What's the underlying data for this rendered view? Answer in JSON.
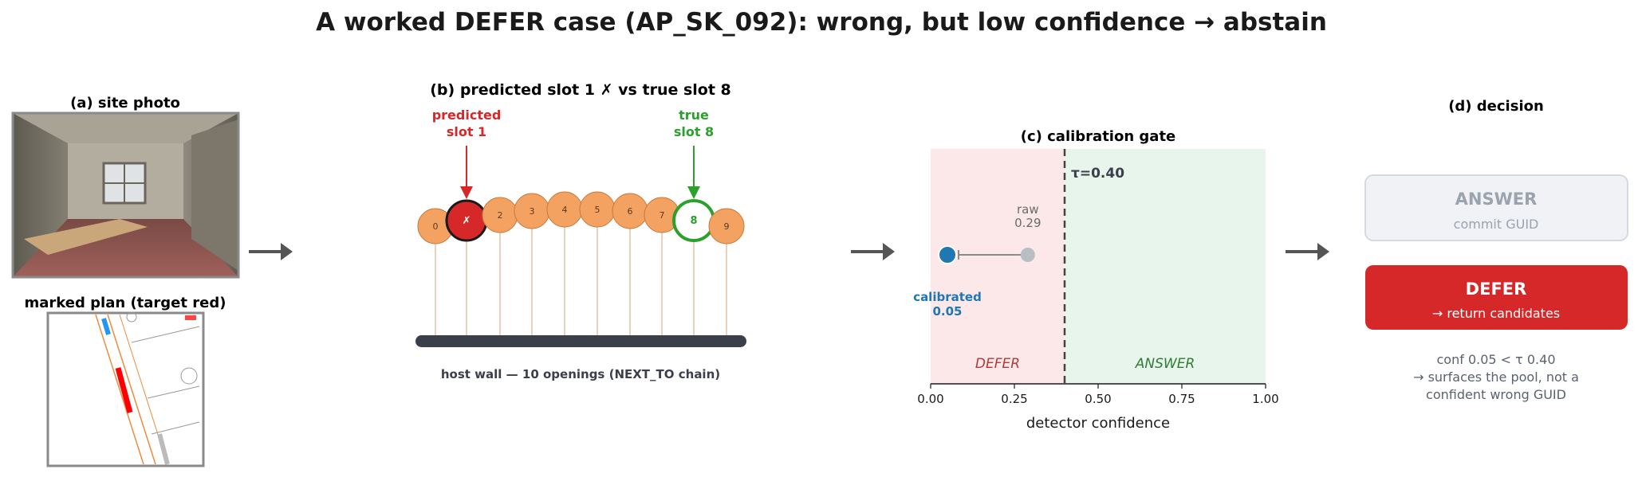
{
  "title": "A worked DEFER case (AP_SK_092): wrong, but low confidence → abstain",
  "panel_a": {
    "photo_title": "(a) site photo",
    "plan_title": "marked plan (target red)"
  },
  "panel_b": {
    "title": "(b)  predicted slot 1 ✗  vs true slot 8",
    "predicted_label_line1": "predicted",
    "predicted_label_line2": "slot 1",
    "true_label_line1": "true",
    "true_label_line2": "slot 8",
    "slots": [
      "0",
      "1",
      "2",
      "3",
      "4",
      "5",
      "6",
      "7",
      "8",
      "9"
    ],
    "predicted_index": 1,
    "predicted_mark": "✗",
    "true_index": 8,
    "caption": "host wall — 10 openings (NEXT_TO chain)"
  },
  "panel_c": {
    "title": "(c)  calibration gate",
    "threshold_label": "τ=0.40",
    "raw_label_line1": "raw",
    "raw_label_line2": "0.29",
    "calibrated_label_line1": "calibrated",
    "calibrated_label_line2": "0.05",
    "defer_region_label": "DEFER",
    "answer_region_label": "ANSWER",
    "xlabel": "detector confidence"
  },
  "chart_data": {
    "type": "scatter",
    "title": "(c)  calibration gate",
    "xlabel": "detector confidence",
    "xlim": [
      0.0,
      1.0
    ],
    "xticks": [
      "0.00",
      "0.25",
      "0.50",
      "0.75",
      "1.00"
    ],
    "xtick_values": [
      0.0,
      0.25,
      0.5,
      0.75,
      1.0
    ],
    "threshold": 0.4,
    "raw_confidence": 0.29,
    "calibrated_confidence": 0.05,
    "regions": [
      {
        "label": "DEFER",
        "from": 0.0,
        "to": 0.4,
        "color": "#fce8e8"
      },
      {
        "label": "ANSWER",
        "from": 0.4,
        "to": 1.0,
        "color": "#e8f5ec"
      }
    ]
  },
  "panel_d": {
    "title": "(d)  decision",
    "answer_title": "ANSWER",
    "answer_sub": "commit GUID",
    "defer_title": "DEFER",
    "defer_sub": "→ return candidates",
    "note_line1": "conf 0.05 < τ 0.40",
    "note_line2": "→ surfaces the pool, not a",
    "note_line3": "confident wrong GUID"
  },
  "colors": {
    "slot_fill": "#f4a261",
    "slot_stroke": "#c97a3c",
    "predicted": "#d62828",
    "true": "#2ca02c",
    "calibrated": "#1f77b4",
    "raw": "#b8bec6",
    "wall": "#3a3f4a",
    "defer_box": "#d62828",
    "answer_box": "#f0f2f6"
  }
}
